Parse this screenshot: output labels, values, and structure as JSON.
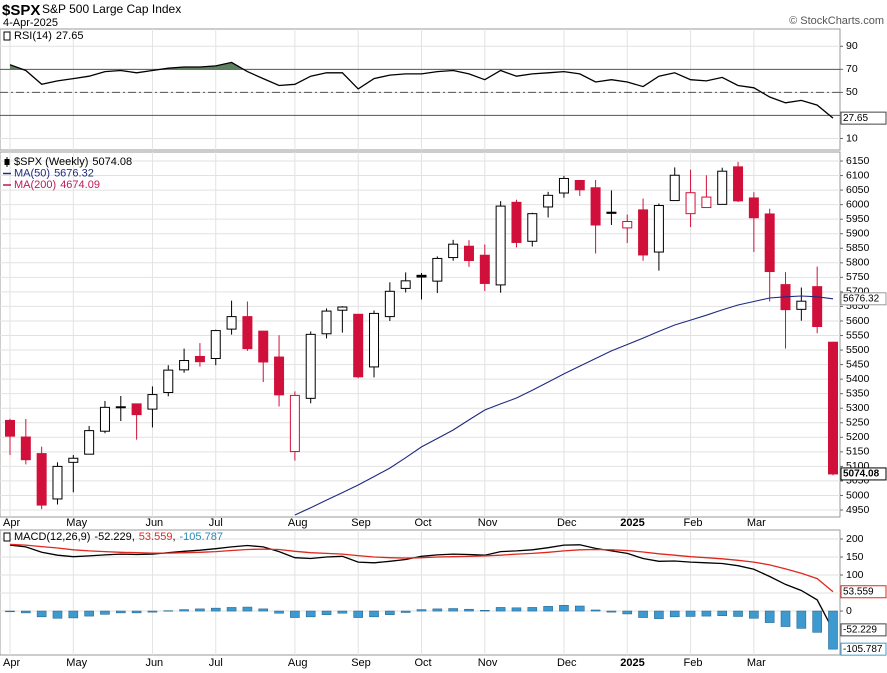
{
  "header": {
    "symbol": "$SPX",
    "name": "S&P 500 Large Cap Index",
    "date": "4-Apr-2025",
    "source": "© StockCharts.com"
  },
  "chart_data": [
    {
      "type": "line",
      "title": "RSI(14)",
      "ylim": [
        0,
        105
      ],
      "yticks": [
        10,
        50,
        70,
        90
      ],
      "grid": true,
      "reference_lines": [
        70,
        50,
        30
      ],
      "reference_styles": [
        "solid",
        "dashdot",
        "solid"
      ],
      "overbought": 70,
      "overbought_color": "#5f8060",
      "series": [
        {
          "color": "#000000",
          "values": [
            74,
            69,
            57,
            60,
            62,
            64,
            68,
            69,
            67,
            69,
            71,
            72,
            72,
            73,
            76,
            68,
            62,
            56,
            57,
            64,
            67,
            67,
            53,
            62,
            65,
            66,
            66,
            68,
            69,
            66,
            61,
            69,
            64,
            66,
            67,
            68,
            66,
            59,
            61,
            59,
            55,
            64,
            67,
            61,
            60,
            63,
            56,
            54,
            46,
            41,
            43,
            39,
            27.65
          ]
        }
      ]
    },
    {
      "type": "candlestick",
      "ylim": [
        4926,
        6181
      ],
      "grid": true,
      "yticks": [
        4950,
        5000,
        5050,
        5100,
        5150,
        5200,
        5250,
        5300,
        5350,
        5400,
        5450,
        5500,
        5550,
        5600,
        5650,
        5700,
        5750,
        5800,
        5850,
        5900,
        5950,
        6000,
        6050,
        6100,
        6150
      ],
      "categories": [
        "Apr",
        null,
        null,
        null,
        "May",
        null,
        null,
        null,
        null,
        "Jun",
        null,
        null,
        null,
        "Jul",
        null,
        null,
        null,
        null,
        "Aug",
        null,
        null,
        null,
        "Sep",
        null,
        null,
        null,
        "Oct",
        null,
        null,
        null,
        "Nov",
        null,
        null,
        null,
        null,
        "Dec",
        null,
        null,
        null,
        "2025",
        null,
        null,
        null,
        "Feb",
        null,
        null,
        null,
        "Mar",
        null,
        null,
        null,
        null,
        null
      ],
      "up_color": "#000000",
      "down_color": "#d0103a",
      "series": [
        {
          "name": "$SPX (Weekly)",
          "color": "#000000",
          "open": [
            5258,
            5201,
            5144,
            4988,
            5114,
            5142,
            5221,
            5303,
            5315,
            5297,
            5354,
            5432,
            5478,
            5471,
            5572,
            5615,
            5565,
            5476,
            5151,
            5334,
            5556,
            5637,
            5623,
            5442,
            5615,
            5712,
            5757,
            5737,
            5818,
            5857,
            5826,
            5724,
            6008,
            5874,
            5992,
            6040,
            6083,
            6058,
            5974,
            5920,
            5982,
            5837,
            6014,
            5969,
            5990,
            6001,
            6130,
            6023,
            5968,
            5725,
            5640,
            5718,
            5527
          ],
          "high": [
            5264,
            5263,
            5168,
            5114,
            5139,
            5239,
            5325,
            5342,
            5315,
            5375,
            5448,
            5505,
            5524,
            5570,
            5670,
            5667,
            5566,
            5551,
            5358,
            5564,
            5643,
            5651,
            5623,
            5636,
            5733,
            5767,
            5765,
            5822,
            5879,
            5878,
            5863,
            6012,
            6017,
            5972,
            6044,
            6099,
            6085,
            6085,
            6049,
            5966,
            6021,
            6004,
            6128,
            6120,
            6101,
            6127,
            6147,
            6043,
            5986,
            5768,
            5715,
            5787,
            5528
          ],
          "low": [
            5139,
            5107,
            4953,
            4969,
            5011,
            5142,
            5214,
            5256,
            5192,
            5234,
            5341,
            5422,
            5443,
            5448,
            5553,
            5497,
            5390,
            5306,
            5120,
            5317,
            5540,
            5560,
            5403,
            5406,
            5600,
            5698,
            5674,
            5696,
            5807,
            5786,
            5703,
            5697,
            5853,
            5856,
            5956,
            6024,
            6030,
            5832,
            5930,
            5868,
            5807,
            5773,
            6014,
            5923,
            5990,
            6001,
            6009,
            5837,
            5667,
            5505,
            5601,
            5558,
            5069
          ],
          "close": [
            5204,
            5123,
            4967,
            5100,
            5128,
            5223,
            5303,
            5305,
            5278,
            5347,
            5431,
            5464,
            5460,
            5567,
            5615,
            5505,
            5459,
            5346,
            5344,
            5554,
            5634,
            5648,
            5408,
            5626,
            5702,
            5738,
            5751,
            5815,
            5864,
            5808,
            5729,
            5995,
            5870,
            5969,
            6032,
            6090,
            6051,
            5930,
            5970,
            5942,
            5827,
            5997,
            6101,
            6041,
            6026,
            6115,
            6013,
            5955,
            5770,
            5639,
            5668,
            5581,
            5074.08
          ]
        },
        {
          "name": "MA(50)",
          "type": "line",
          "color": "#1f2a80",
          "values": [
            null,
            null,
            null,
            null,
            null,
            null,
            null,
            null,
            null,
            null,
            null,
            null,
            null,
            null,
            null,
            null,
            null,
            null,
            4933,
            4958,
            4984,
            5010,
            5036,
            5065,
            5094,
            5130,
            5167,
            5196,
            5225,
            5260,
            5294,
            5315,
            5335,
            5362,
            5390,
            5418,
            5445,
            5471,
            5497,
            5519,
            5541,
            5564,
            5586,
            5603,
            5620,
            5638,
            5655,
            5667,
            5679,
            5683,
            5686,
            5683,
            5676.32
          ]
        },
        {
          "name": "MA(200)",
          "type": "line",
          "color": "#c0185a",
          "last_value": 4674.09
        }
      ]
    },
    {
      "type": "line",
      "title": "MACD(12,26,9)",
      "separator": ",",
      "ylim": [
        -122,
        225
      ],
      "yticks": [
        0,
        50,
        100,
        150,
        200
      ],
      "grid": true,
      "series": [
        {
          "color": "#000000",
          "values": [
            183,
            178,
            163,
            155,
            151,
            153,
            156,
            158,
            157,
            158,
            162,
            166,
            169,
            173,
            178,
            182,
            178,
            165,
            148,
            146,
            150,
            152,
            136,
            134,
            138,
            143,
            152,
            156,
            158,
            157,
            155,
            165,
            167,
            170,
            176,
            183,
            184,
            174,
            167,
            160,
            146,
            138,
            139,
            136,
            134,
            132,
            126,
            116,
            96,
            74,
            57,
            31,
            -52.229
          ]
        },
        {
          "color": "#e0281e",
          "values": [
            185,
            183,
            179,
            175,
            170,
            167,
            165,
            163,
            162,
            161,
            161,
            162,
            163,
            165,
            168,
            171,
            172,
            171,
            166,
            162,
            160,
            158,
            154,
            150,
            148,
            147,
            148,
            150,
            151,
            152,
            153,
            155,
            158,
            160,
            163,
            167,
            170,
            171,
            170,
            168,
            164,
            159,
            155,
            151,
            148,
            145,
            141,
            136,
            128,
            117,
            105,
            90,
            53.559
          ]
        },
        {
          "type": "bar",
          "color": "#3d9ad1",
          "values": [
            -2,
            -5,
            -16,
            -20,
            -19,
            -14,
            -9,
            -5,
            -5,
            -3,
            1,
            4,
            6,
            8,
            10,
            11,
            6,
            -6,
            -18,
            -16,
            -10,
            -6,
            -18,
            -16,
            -10,
            -4,
            4,
            6,
            7,
            5,
            2,
            10,
            9,
            10,
            13,
            16,
            14,
            3,
            -3,
            -8,
            -18,
            -21,
            -16,
            -15,
            -14,
            -13,
            -15,
            -20,
            -32,
            -43,
            -48,
            -59,
            -105.787
          ]
        }
      ]
    }
  ]
}
